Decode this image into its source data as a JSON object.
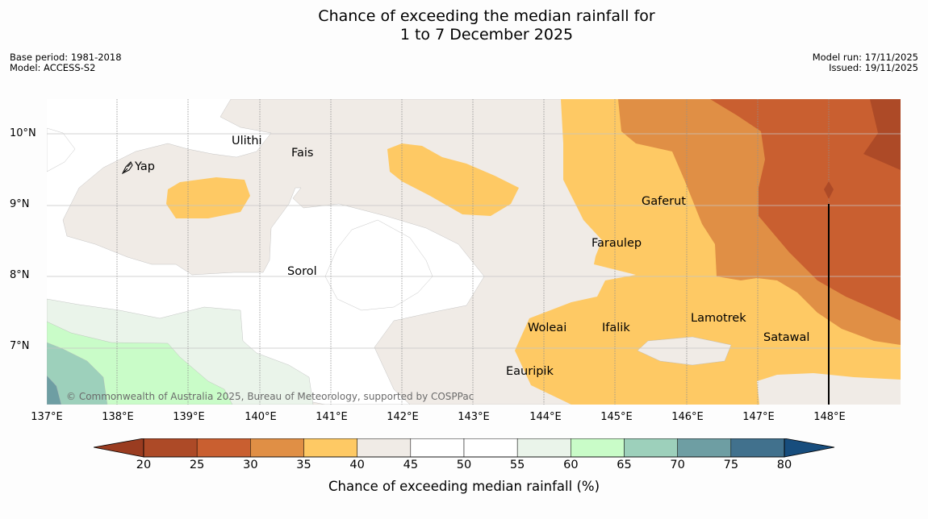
{
  "title": {
    "line1": "Chance of exceeding the median rainfall for",
    "line2": "1 to 7 December 2025"
  },
  "meta": {
    "base_period": "Base period: 1981-2018",
    "model": "Model: ACCESS-S2",
    "model_run": "Model run: 17/11/2025",
    "issued": "Issued: 19/11/2025"
  },
  "map": {
    "latitude_ticks": [
      "10°N",
      "9°N",
      "8°N",
      "7°N"
    ],
    "longitude_ticks": [
      "137°E",
      "138°E",
      "139°E",
      "140°E",
      "141°E",
      "142°E",
      "143°E",
      "144°E",
      "145°E",
      "146°E",
      "147°E",
      "148°E"
    ],
    "places": [
      "Ulithi",
      "Fais",
      "Yap",
      "Gaferut",
      "Faraulep",
      "Sorol",
      "Lamotrek",
      "Woleai",
      "Ifalik",
      "Satawal",
      "Eauripik"
    ],
    "copyright": "© Commonwealth of Australia 2025, Bureau of Meteorology, supported by COSPPac"
  },
  "legend": {
    "ticks": [
      "20",
      "25",
      "30",
      "35",
      "40",
      "45",
      "50",
      "55",
      "60",
      "65",
      "70",
      "75",
      "80"
    ],
    "label": "Chance of exceeding median rainfall (%)",
    "colors": [
      "#ad4a27",
      "#c95f30",
      "#e08f45",
      "#fec964",
      "#f0ebe6",
      "#ffffff",
      "#ffffff",
      "#eaf4ea",
      "#c9fcc8",
      "#9dd0bb",
      "#6e9ea3",
      "#41718d"
    ],
    "under_color": "#9a3c20",
    "over_color": "#174d7d"
  }
}
